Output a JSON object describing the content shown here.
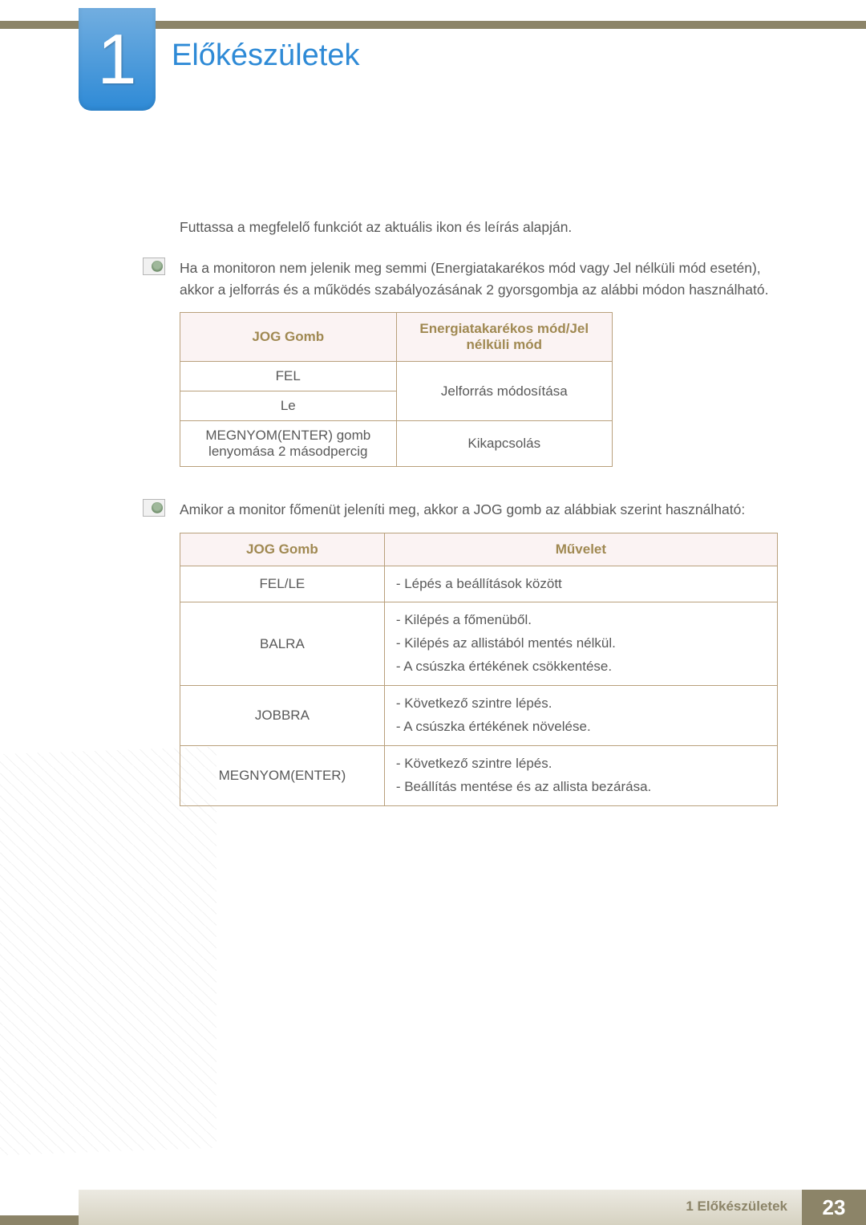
{
  "chapter": {
    "number": "1",
    "title": "Előkészületek",
    "title_color": "#2e8ad6"
  },
  "intro": "Futtassa a megfelelő funkciót az aktuális ikon és leírás alapján.",
  "note1": "Ha a monitoron nem jelenik meg semmi (Energiatakarékos mód vagy Jel nélküli mód esetén), akkor a jelforrás és a működés szabályozásának 2 gyorsgombja az alábbi módon használható.",
  "table1": {
    "header_a": "JOG Gomb",
    "header_b": "Energiatakarékos mód/Jel nélküli mód",
    "rows": {
      "r1a": "FEL",
      "r2a": "Le",
      "r12b": "Jelforrás módosítása",
      "r3a": "MEGNYOM(ENTER) gomb lenyomása 2 másodpercig",
      "r3b": "Kikapcsolás"
    },
    "header_color": "#a08952",
    "header_bg": "#fbf3f3",
    "border_color": "#b9a07c"
  },
  "note2": "Amikor a monitor főmenüt jeleníti meg, akkor a JOG gomb az alábbiak szerint használható:",
  "table2": {
    "header_a": "JOG Gomb",
    "header_b": "Művelet",
    "rows": [
      {
        "a": "FEL/LE",
        "b": "- Lépés a beállítások között"
      },
      {
        "a": "BALRA",
        "b": "- Kilépés a főmenüből.\n- Kilépés az allistából mentés nélkül.\n- A csúszka értékének csökkentése."
      },
      {
        "a": "JOBBRA",
        "b": "- Következő szintre lépés.\n- A csúszka értékének növelése."
      },
      {
        "a": "MEGNYOM(ENTER)",
        "b": "- Következő szintre lépés.\n- Beállítás mentése és az allista bezárása."
      }
    ]
  },
  "footer": {
    "crumb": "1 Előkészületek",
    "page": "23",
    "bar_color": "#8c8468"
  }
}
